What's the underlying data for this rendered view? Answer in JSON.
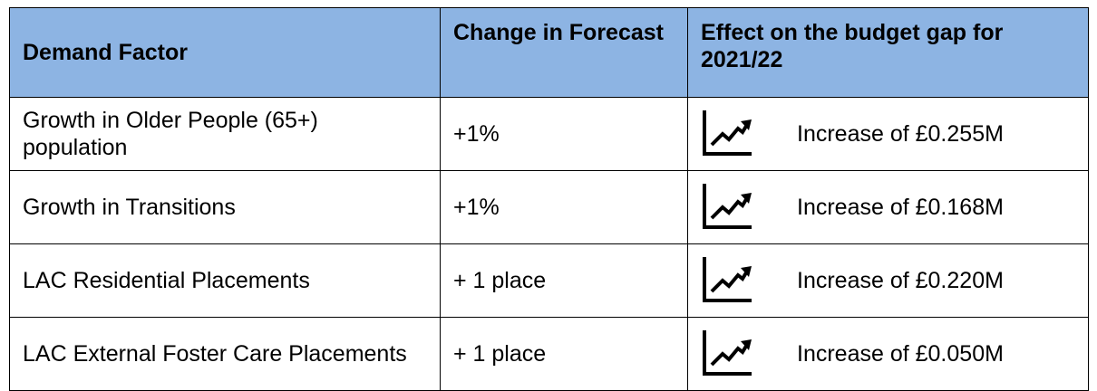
{
  "table": {
    "header": [
      "Demand Factor",
      "Change in Forecast",
      "Effect on the budget gap for 2021/22"
    ],
    "rows": [
      [
        "Growth in Older People (65+) population",
        "+1%",
        "Increase of £0.255M"
      ],
      [
        "Growth in Transitions",
        "+1%",
        "Increase of £0.168M"
      ],
      [
        "LAC Residential Placements",
        "+ 1 place",
        "Increase of £0.220M"
      ],
      [
        "LAC External Foster Care Placements",
        "+ 1 place",
        "Increase of £0.050M"
      ]
    ]
  }
}
